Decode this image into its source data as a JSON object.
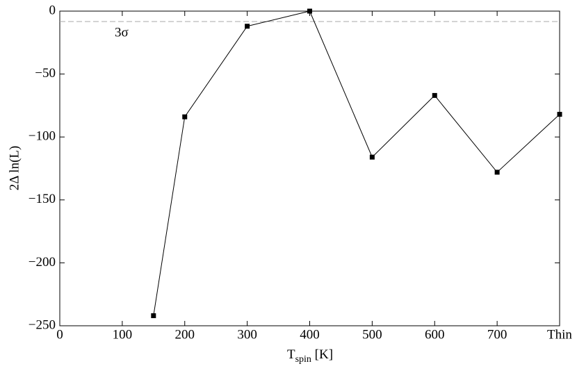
{
  "chart_data": {
    "type": "line",
    "x_label": {
      "main": "T",
      "sub": "spin",
      "rest": " [K]"
    },
    "y_label": "2Δ ln(L)",
    "x": [
      150,
      200,
      300,
      400,
      500,
      600,
      700,
      800
    ],
    "series": [
      {
        "color": "#000000",
        "values": [
          -242,
          -84,
          -12,
          0,
          -116,
          -67,
          -128,
          -82
        ]
      }
    ],
    "xlim": [
      0,
      800
    ],
    "xticks": [
      0,
      100,
      200,
      300,
      400,
      500,
      600,
      700,
      {
        "value": 800,
        "label": "Thin"
      }
    ],
    "ylim": [
      -250,
      0
    ],
    "yticks": [
      {
        "value": -250,
        "label": "−250"
      },
      {
        "value": -200,
        "label": "−200"
      },
      {
        "value": -150,
        "label": "−150"
      },
      {
        "value": -100,
        "label": "−100"
      },
      {
        "value": -50,
        "label": "−50"
      },
      0
    ],
    "threshold": {
      "value": -8.3,
      "label": "3σ",
      "color": "#aaaaaa"
    },
    "grid": false
  }
}
